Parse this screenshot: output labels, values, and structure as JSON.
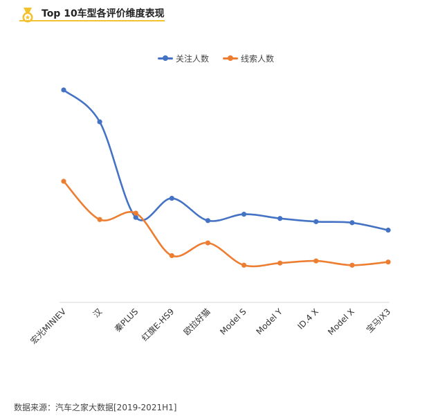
{
  "header": {
    "title": "Top 10车型各评价维度表现",
    "icon": "medal-icon"
  },
  "footer": {
    "source": "数据来源：汽车之家大数据[2019-2021H1]"
  },
  "colors": {
    "series1": "#4472c4",
    "series2": "#ed7d31",
    "accent": "#f2c12e",
    "axis": "#d9d9d9"
  },
  "chart_data": {
    "type": "line",
    "title": "",
    "xlabel": "",
    "ylabel": "",
    "ylim": [
      0,
      100
    ],
    "grid": false,
    "legend": "top",
    "categories": [
      "宏光MINIEV",
      "汉",
      "秦PLUS",
      "红旗E-HS9",
      "欧拉好猫",
      "Model S",
      "Model Y",
      "ID.4 X",
      "Model X",
      "宝马iX3"
    ],
    "series": [
      {
        "name": "关注人数",
        "values": [
          100,
          85,
          40,
          49,
          38.5,
          41.5,
          39.5,
          38,
          37.5,
          34
        ],
        "color": "#4472c4"
      },
      {
        "name": "线索人数",
        "values": [
          57,
          39,
          42,
          22,
          28,
          17.5,
          18.5,
          19.5,
          17.5,
          19
        ],
        "color": "#ed7d31"
      }
    ]
  }
}
